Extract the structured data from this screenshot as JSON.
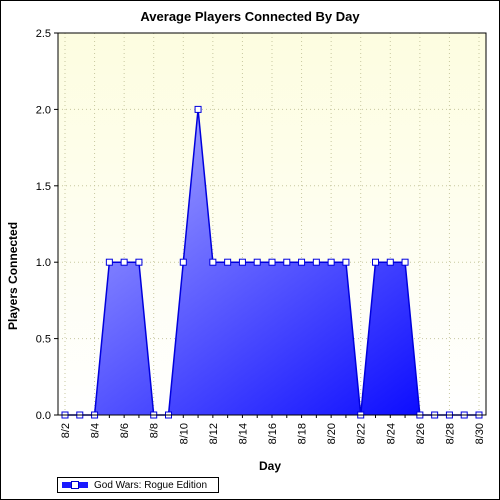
{
  "chart_data": {
    "type": "area",
    "title": "Average Players Connected By Day",
    "xlabel": "Day",
    "ylabel": "Players Connected",
    "ylim": [
      0,
      2.5
    ],
    "yticks": [
      "0.0",
      "0.5",
      "1.0",
      "1.5",
      "2.0",
      "2.5"
    ],
    "x": [
      "8/2",
      "8/3",
      "8/4",
      "8/5",
      "8/6",
      "8/7",
      "8/8",
      "8/9",
      "8/10",
      "8/11",
      "8/12",
      "8/13",
      "8/14",
      "8/15",
      "8/16",
      "8/17",
      "8/18",
      "8/19",
      "8/20",
      "8/21",
      "8/22",
      "8/23",
      "8/24",
      "8/25",
      "8/26",
      "8/27",
      "8/28",
      "8/29",
      "8/30"
    ],
    "xtick_labels": [
      "8/2",
      "8/4",
      "8/6",
      "8/8",
      "8/10",
      "8/12",
      "8/14",
      "8/16",
      "8/18",
      "8/20",
      "8/22",
      "8/24",
      "8/26",
      "8/28",
      "8/30"
    ],
    "grid": true,
    "legend_position": "bottom-left",
    "series": [
      {
        "name": "God Wars: Rogue Edition",
        "values": [
          0,
          0,
          0,
          1,
          1,
          1,
          0,
          0,
          1,
          2,
          1,
          1,
          1,
          1,
          1,
          1,
          1,
          1,
          1,
          1,
          0,
          1,
          1,
          1,
          0,
          0,
          0,
          0,
          0
        ],
        "color": "#0000ff"
      }
    ]
  },
  "colors": {
    "plot_bg_top": "#fdfde0",
    "plot_bg_bottom": "#ffffff",
    "area_light": "#b4b4ff",
    "area_dark": "#0000ff",
    "line": "#0000dd"
  }
}
